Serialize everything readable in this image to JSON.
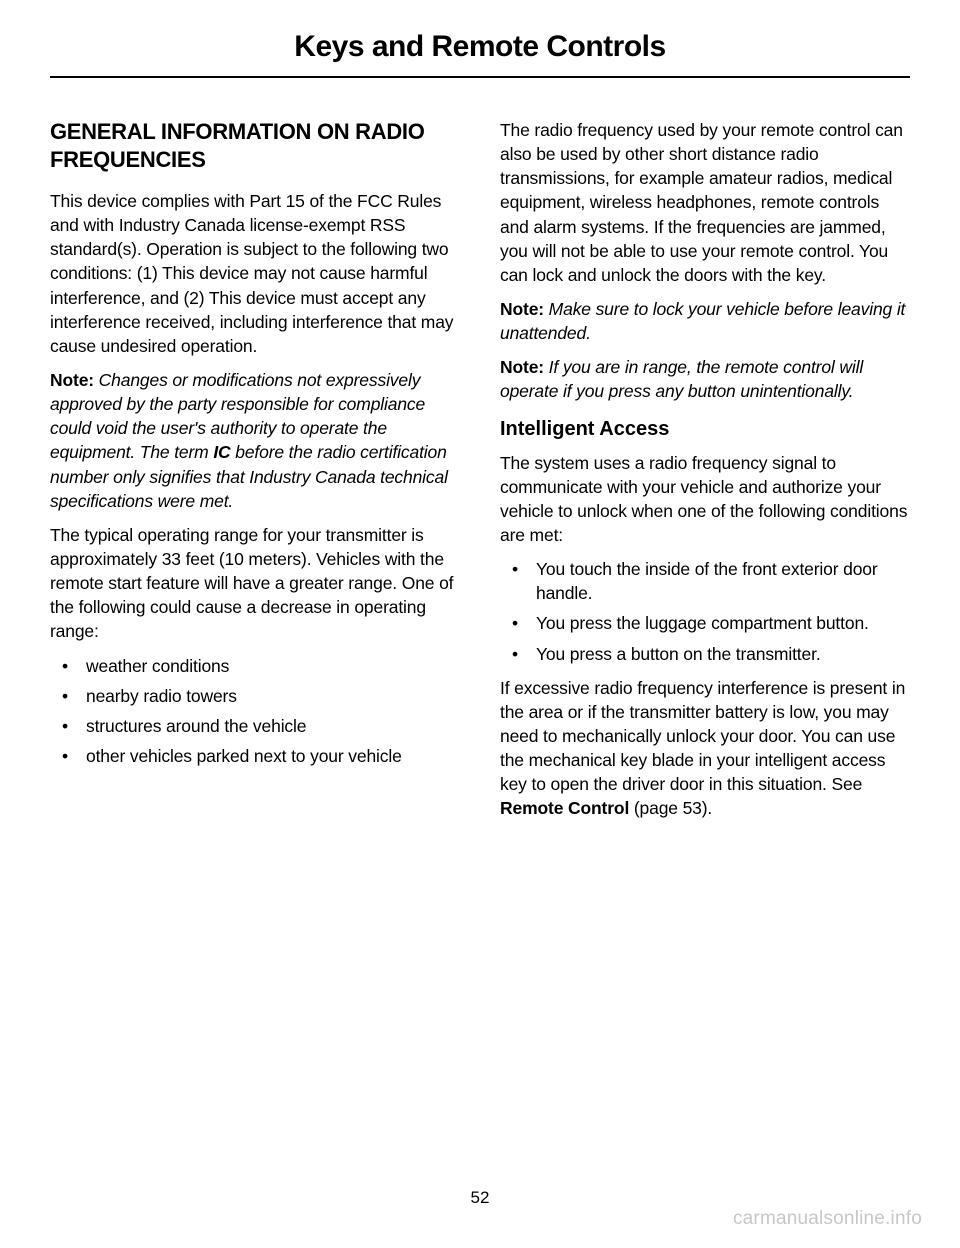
{
  "header": {
    "title": "Keys and Remote Controls"
  },
  "left": {
    "heading": "GENERAL INFORMATION ON RADIO FREQUENCIES",
    "p1": "This device complies with Part 15 of the FCC Rules and with Industry Canada license-exempt RSS standard(s). Operation is subject to the following two conditions: (1) This device may not cause harmful interference, and (2) This device must accept any interference received, including interference that may cause undesired operation.",
    "note1_label": "Note:",
    "note1_a": " Changes or modifications not expressively approved by the party responsible for compliance could void the user's authority to operate the equipment. The term ",
    "note1_ic": "IC",
    "note1_b": " before the radio certification number only signifies that Industry Canada technical specifications were met.",
    "p2": "The typical operating range for your transmitter is approximately 33 feet (10 meters). Vehicles with the remote start feature will have a greater range. One of the following could cause a decrease in operating range:",
    "list": [
      "weather conditions",
      "nearby radio towers",
      "structures around the vehicle",
      "other vehicles parked next to your vehicle"
    ]
  },
  "right": {
    "p1": "The radio frequency used by your remote control can also be used by other short distance radio transmissions, for example amateur radios, medical equipment, wireless headphones, remote controls and alarm systems. If the frequencies are jammed, you will not be able to use your remote control. You can lock and unlock the doors with the key.",
    "note1_label": "Note:",
    "note1": " Make sure to lock your vehicle before leaving it unattended.",
    "note2_label": "Note:",
    "note2": " If you are in range, the remote control will operate if you press any button unintentionally.",
    "subheading": "Intelligent Access",
    "p2": "The system uses a radio frequency signal to communicate with your vehicle and authorize your vehicle to unlock when one of the following conditions are met:",
    "list": [
      "You touch the inside of the front exterior door handle.",
      "You press the luggage compartment button.",
      "You press a button on the transmitter."
    ],
    "p3a": "If excessive radio frequency interference is present in the area or if the transmitter battery is low, you may need to mechanically unlock your door. You can use the mechanical key blade in your intelligent access key to open the driver door in this situation. See ",
    "p3b": "Remote Control",
    "p3c": " (page 53)."
  },
  "page_number": "52",
  "watermark": "carmanualsonline.info"
}
